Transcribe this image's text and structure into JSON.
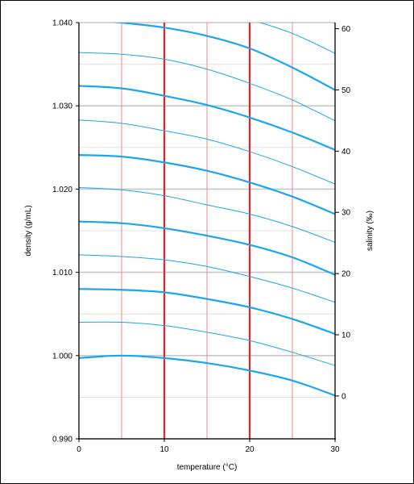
{
  "chart_data": {
    "type": "line",
    "title": "",
    "xlabel": "temperature (°C)",
    "ylabel": "density (g/mL)",
    "y2label": "salinity (‰)",
    "xlim": [
      0,
      30
    ],
    "ylim": [
      0.99,
      1.04
    ],
    "y2lim": [
      -7,
      61
    ],
    "x_ticks": [
      "0",
      "10",
      "20",
      "30"
    ],
    "y_ticks": [
      "0.990",
      "1.000",
      "1.010",
      "1.020",
      "1.030",
      "1.040"
    ],
    "y2_ticks": [
      "0",
      "10",
      "20",
      "30",
      "40",
      "50",
      "60"
    ],
    "grid": true,
    "x": [
      0,
      5,
      10,
      15,
      20,
      25,
      30
    ],
    "series": [
      {
        "salinity": 0,
        "style": "major",
        "values": [
          0.9997,
          1.0,
          0.9997,
          0.9991,
          0.9982,
          0.997,
          0.9952
        ]
      },
      {
        "salinity": 5,
        "style": "minor",
        "values": [
          1.004,
          1.004,
          1.0036,
          1.0028,
          1.0018,
          1.0004,
          0.9988
        ]
      },
      {
        "salinity": 10,
        "style": "major",
        "values": [
          1.008,
          1.0079,
          1.0076,
          1.0068,
          1.0058,
          1.0044,
          1.0026
        ]
      },
      {
        "salinity": 15,
        "style": "minor",
        "values": [
          1.0121,
          1.0119,
          1.0115,
          1.0107,
          1.0095,
          1.0081,
          1.0064
        ]
      },
      {
        "salinity": 20,
        "style": "major",
        "values": [
          1.0161,
          1.0159,
          1.0153,
          1.0144,
          1.0133,
          1.0118,
          1.0097
        ]
      },
      {
        "salinity": 25,
        "style": "minor",
        "values": [
          1.0202,
          1.0199,
          1.0192,
          1.0181,
          1.017,
          1.0155,
          1.0136
        ]
      },
      {
        "salinity": 30,
        "style": "major",
        "values": [
          1.0241,
          1.0239,
          1.0232,
          1.0222,
          1.0208,
          1.0191,
          1.017
        ]
      },
      {
        "salinity": 35,
        "style": "minor",
        "values": [
          1.0283,
          1.0279,
          1.027,
          1.026,
          1.0245,
          1.0227,
          1.0206
        ]
      },
      {
        "salinity": 40,
        "style": "major",
        "values": [
          1.0324,
          1.0321,
          1.0312,
          1.0301,
          1.0286,
          1.0268,
          1.0247
        ]
      },
      {
        "salinity": 45,
        "style": "minor",
        "values": [
          1.0364,
          1.0362,
          1.0356,
          1.0344,
          1.0327,
          1.0307,
          1.0282
        ]
      },
      {
        "salinity": 50,
        "style": "major",
        "values": [
          1.0405,
          1.04,
          1.0394,
          1.0384,
          1.0369,
          1.0346,
          1.0319
        ]
      },
      {
        "salinity": 55,
        "style": "minor",
        "values": [
          1.0446,
          1.044,
          1.0432,
          1.042,
          1.0404,
          1.0387,
          1.0363
        ]
      },
      {
        "salinity": 60,
        "style": "major",
        "values": [
          1.0487,
          1.0481,
          1.0472,
          1.046,
          1.0444,
          1.0424,
          1.04
        ]
      }
    ],
    "colors": {
      "curve": "#1aa7ec",
      "temp_major": "#e32525",
      "temp_minor": "#ef8a8a",
      "density_major": "#c8c8c8",
      "density_minor": "#e0e0e0",
      "axis": "#000000"
    }
  }
}
